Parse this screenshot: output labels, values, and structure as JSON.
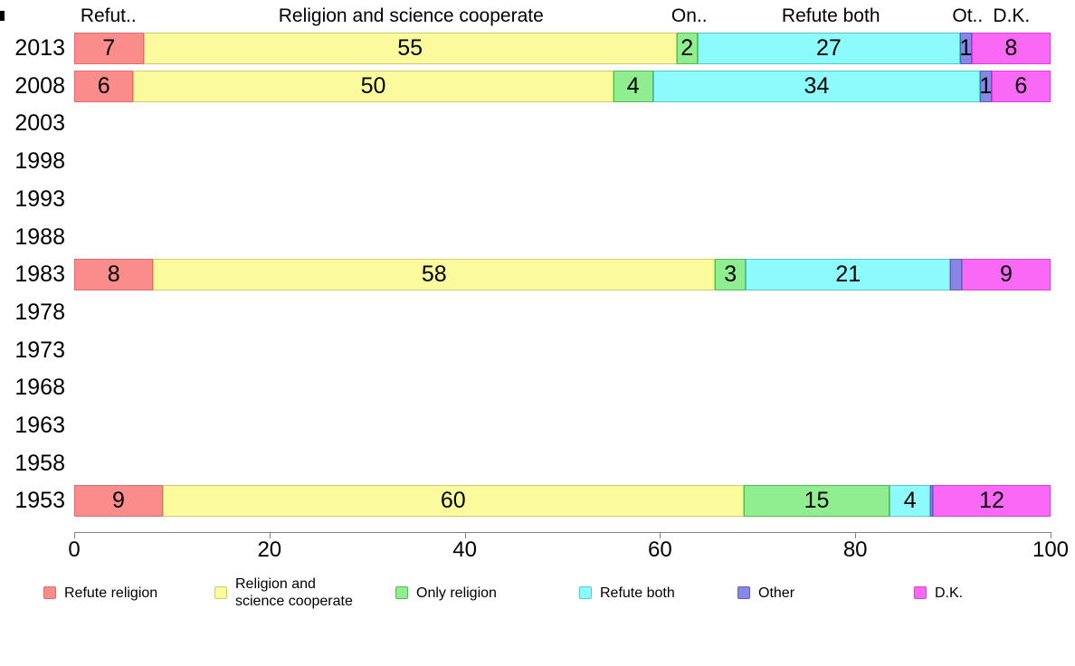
{
  "chart_data": {
    "type": "bar",
    "orientation": "horizontal",
    "stacked": true,
    "title": "",
    "xlabel": "",
    "ylabel": "",
    "xlim": [
      0,
      100
    ],
    "x_ticks": [
      0,
      20,
      40,
      60,
      80,
      100
    ],
    "grid": false,
    "legend_position": "bottom",
    "categories": [
      "2013",
      "2008",
      "2003",
      "1998",
      "1993",
      "1988",
      "1983",
      "1978",
      "1973",
      "1968",
      "1963",
      "1958",
      "1953"
    ],
    "series": [
      {
        "name": "Refute religion",
        "column_header": "Refut..",
        "color": "#FA8C8C",
        "border_color": "#DE6D6D",
        "values": [
          7,
          6,
          null,
          null,
          null,
          null,
          8,
          null,
          null,
          null,
          null,
          null,
          9
        ],
        "labels": [
          "7",
          "6",
          "",
          "",
          "",
          "",
          "8",
          "",
          "",
          "",
          "",
          "",
          "9"
        ]
      },
      {
        "name": "Religion and science cooperate",
        "column_header": "Religion and science cooperate",
        "color": "#FBFB9E",
        "border_color": "#CDCD70",
        "values": [
          55,
          50,
          null,
          null,
          null,
          null,
          58,
          null,
          null,
          null,
          null,
          null,
          60
        ],
        "labels": [
          "55",
          "50",
          "",
          "",
          "",
          "",
          "58",
          "",
          "",
          "",
          "",
          "",
          "60"
        ]
      },
      {
        "name": "Only religion",
        "column_header": "On..",
        "color": "#90EE90",
        "border_color": "#52BB52",
        "values": [
          2,
          4,
          null,
          null,
          null,
          null,
          3,
          null,
          null,
          null,
          null,
          null,
          15
        ],
        "labels": [
          "2",
          "4",
          "",
          "",
          "",
          "",
          "3",
          "",
          "",
          "",
          "",
          "",
          "15"
        ]
      },
      {
        "name": "Refute both",
        "column_header": "Refute both",
        "color": "#8DFBFB",
        "border_color": "#55C9C9",
        "values": [
          27,
          34,
          null,
          null,
          null,
          null,
          21,
          null,
          null,
          null,
          null,
          null,
          4
        ],
        "labels": [
          "27",
          "34",
          "",
          "",
          "",
          "",
          "21",
          "",
          "",
          "",
          "",
          "",
          "4"
        ]
      },
      {
        "name": "Other",
        "column_header": "Ot..",
        "color": "#8787E8",
        "border_color": "#5B5BC9",
        "values": [
          1,
          1,
          null,
          null,
          null,
          null,
          1,
          null,
          null,
          null,
          null,
          null,
          0
        ],
        "labels": [
          "1",
          "1",
          "",
          "",
          "",
          "",
          "",
          "",
          "",
          "",
          "",
          "",
          ""
        ]
      },
      {
        "name": "D.K.",
        "column_header": "D.K.",
        "color": "#FA69F5",
        "border_color": "#DB3FD6",
        "values": [
          8,
          6,
          null,
          null,
          null,
          null,
          9,
          null,
          null,
          null,
          null,
          null,
          12
        ],
        "labels": [
          "8",
          "6",
          "",
          "",
          "",
          "",
          "9",
          "",
          "",
          "",
          "",
          "",
          "12"
        ]
      }
    ],
    "legend": {
      "items": [
        {
          "label": "Refute religion"
        },
        {
          "label": "Religion and\nscience cooperate"
        },
        {
          "label": "Only religion"
        },
        {
          "label": "Refute both"
        },
        {
          "label": "Other"
        },
        {
          "label": "D.K."
        }
      ]
    }
  }
}
